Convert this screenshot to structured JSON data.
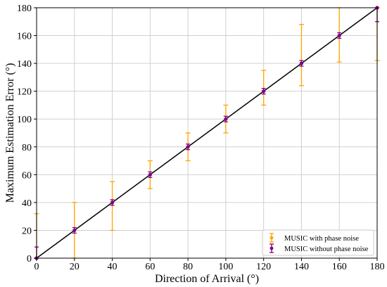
{
  "chart_data": {
    "type": "scatter",
    "title": "",
    "xlabel": "Direction of Arrival (°)",
    "ylabel": "Maximum Estimation Error (°)",
    "xlim": [
      0,
      180
    ],
    "ylim": [
      0,
      180
    ],
    "xticks": [
      "0",
      "20",
      "40",
      "60",
      "80",
      "100",
      "120",
      "140",
      "160",
      "180"
    ],
    "yticks": [
      "0",
      "20",
      "40",
      "60",
      "80",
      "100",
      "120",
      "140",
      "160",
      "180"
    ],
    "grid": true,
    "legend_position": "lower-right",
    "reference_line": {
      "x": [
        0,
        180
      ],
      "y": [
        0,
        180
      ],
      "color": "#000000"
    },
    "series": [
      {
        "name": "MUSIC with phase noise",
        "color": "#FFA500",
        "x": [
          0,
          20,
          40,
          60,
          80,
          100,
          120,
          140,
          160,
          180
        ],
        "y": [
          0,
          20,
          40,
          60,
          80,
          100,
          120,
          140,
          160,
          180
        ],
        "err_low": [
          0,
          20,
          20,
          10,
          10,
          10,
          10,
          16,
          19,
          38
        ],
        "err_high": [
          32,
          20,
          15,
          10,
          10,
          10,
          15,
          28,
          20,
          0
        ]
      },
      {
        "name": "MUSIC without phase noise",
        "color": "#800080",
        "x": [
          0,
          20,
          40,
          60,
          80,
          100,
          120,
          140,
          160,
          180
        ],
        "y": [
          0,
          20,
          40,
          60,
          80,
          100,
          120,
          140,
          160,
          180
        ],
        "err_low": [
          0,
          2,
          2,
          2,
          2,
          2,
          2,
          2,
          2,
          10
        ],
        "err_high": [
          8,
          2,
          2,
          2,
          2,
          2,
          2,
          2,
          2,
          0
        ]
      }
    ]
  }
}
